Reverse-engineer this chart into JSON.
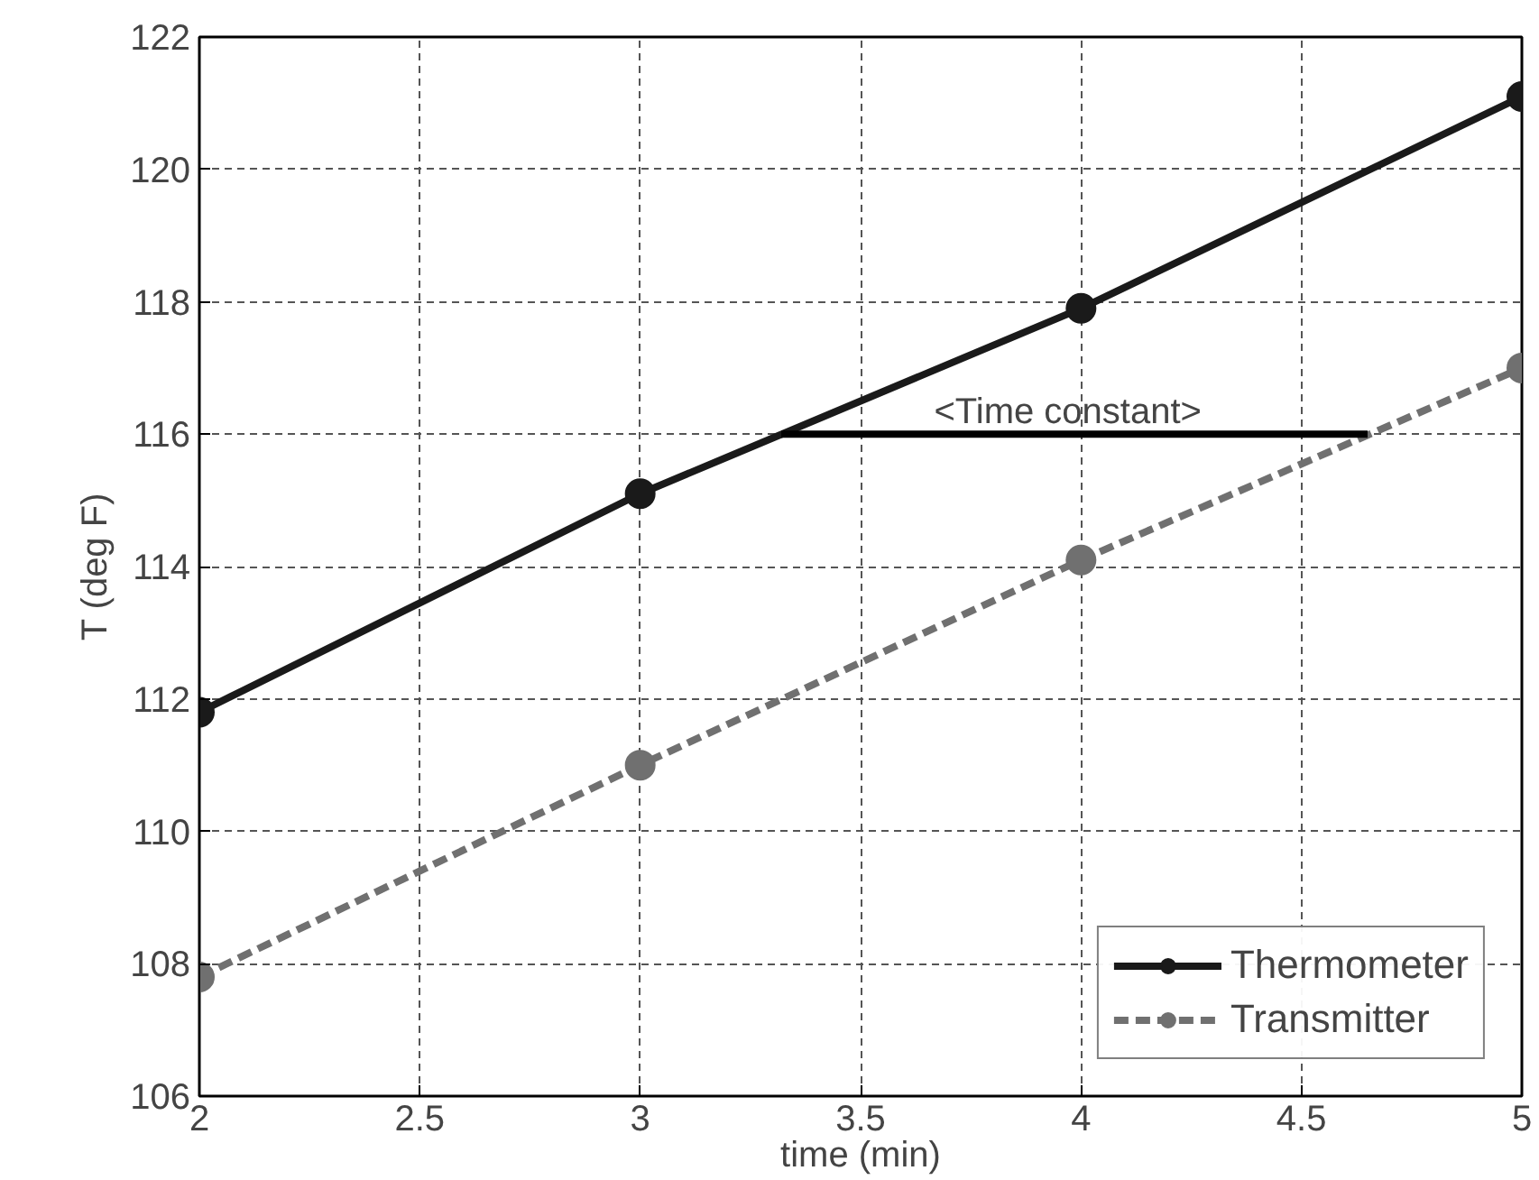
{
  "chart_data": {
    "type": "line",
    "xlabel": "time (min)",
    "ylabel": "T (deg F)",
    "x": [
      2,
      3,
      4,
      5
    ],
    "series": [
      {
        "name": "Thermometer",
        "color": "#1a1a1a",
        "values": [
          111.8,
          115.1,
          117.9,
          121.1
        ],
        "line_style": "solid",
        "marker": "circle"
      },
      {
        "name": "Transmitter",
        "color": "#707070",
        "values": [
          107.8,
          111.0,
          114.1,
          117.0
        ],
        "line_style": "dashed",
        "marker": "circle"
      },
      {
        "x": [
          3.32,
          4.65
        ],
        "color": "#000000",
        "values": [
          116,
          116
        ],
        "line_style": "solid",
        "marker": "none"
      }
    ],
    "annotations": [
      {
        "text": "<Time constant>",
        "x": 3.97,
        "y": 116
      }
    ],
    "xlim": [
      2,
      5
    ],
    "ylim": [
      106,
      122
    ],
    "xticks": [
      2,
      2.5,
      3,
      3.5,
      4,
      4.5,
      5
    ],
    "yticks": [
      106,
      108,
      110,
      112,
      114,
      116,
      118,
      120,
      122
    ],
    "grid": true,
    "legend": "bottom right"
  }
}
